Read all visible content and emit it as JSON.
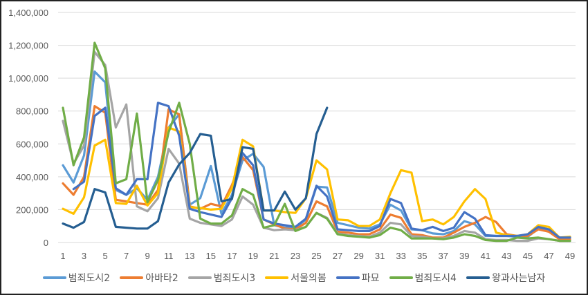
{
  "chart_data": {
    "type": "line",
    "title": "",
    "xlabel": "",
    "ylabel": "",
    "ylim": [
      0,
      1400000
    ],
    "yticks": [
      0,
      200000,
      400000,
      600000,
      800000,
      1000000,
      1200000,
      1400000
    ],
    "ytick_labels": [
      "0",
      "200,000",
      "400,000",
      "600,000",
      "800,000",
      "1,000,000",
      "1,200,000",
      "1,400,000"
    ],
    "x": [
      1,
      2,
      3,
      4,
      5,
      6,
      7,
      8,
      9,
      10,
      11,
      12,
      13,
      14,
      15,
      16,
      17,
      18,
      19,
      20,
      21,
      22,
      23,
      24,
      25,
      26,
      27,
      28,
      29,
      30,
      31,
      32,
      33,
      34,
      35,
      36,
      37,
      38,
      39,
      40,
      41,
      42,
      43,
      44,
      45,
      46,
      47,
      48,
      49
    ],
    "xtick_labels": [
      "1",
      "3",
      "5",
      "7",
      "9",
      "11",
      "13",
      "15",
      "17",
      "19",
      "21",
      "23",
      "25",
      "27",
      "29",
      "31",
      "33",
      "35",
      "37",
      "39",
      "41",
      "43",
      "45",
      "47",
      "49"
    ],
    "grid": true,
    "legend_position": "bottom",
    "series": [
      {
        "name": "범죄도시2",
        "color": "#5B9BD5",
        "values": [
          470000,
          365000,
          530000,
          1040000,
          975000,
          320000,
          290000,
          330000,
          260000,
          400000,
          700000,
          780000,
          230000,
          270000,
          465000,
          175000,
          290000,
          500000,
          540000,
          460000,
          105000,
          90000,
          90000,
          140000,
          340000,
          335000,
          120000,
          105000,
          90000,
          85000,
          110000,
          230000,
          195000,
          80000,
          75000,
          55000,
          50000,
          70000,
          130000,
          110000,
          40000,
          40000,
          40000,
          35000,
          35000,
          85000,
          70000,
          30000,
          30000
        ]
      },
      {
        "name": "아바타2",
        "color": "#ED7D31",
        "values": [
          360000,
          290000,
          400000,
          830000,
          790000,
          260000,
          250000,
          240000,
          230000,
          320000,
          810000,
          780000,
          220000,
          205000,
          235000,
          220000,
          350000,
          520000,
          440000,
          140000,
          110000,
          85000,
          80000,
          120000,
          250000,
          220000,
          65000,
          60000,
          50000,
          50000,
          80000,
          170000,
          150000,
          50000,
          45000,
          30000,
          30000,
          60000,
          95000,
          120000,
          155000,
          125000,
          50000,
          40000,
          40000,
          80000,
          65000,
          20000,
          20000
        ]
      },
      {
        "name": "범죄도시3",
        "color": "#A5A5A5",
        "values": [
          740000,
          480000,
          590000,
          1160000,
          1080000,
          700000,
          840000,
          220000,
          190000,
          270000,
          570000,
          480000,
          145000,
          120000,
          110000,
          100000,
          140000,
          280000,
          230000,
          90000,
          75000,
          80000,
          75000,
          95000,
          180000,
          150000,
          55000,
          45000,
          40000,
          35000,
          60000,
          120000,
          110000,
          40000,
          35000,
          25000,
          25000,
          40000,
          70000,
          60000,
          20000,
          15000,
          15000,
          10000,
          10000,
          25000,
          20000,
          10000,
          10000
        ]
      },
      {
        "name": "서울의봄",
        "color": "#FFC000",
        "values": [
          205000,
          175000,
          275000,
          590000,
          625000,
          240000,
          235000,
          345000,
          225000,
          300000,
          700000,
          675000,
          215000,
          210000,
          200000,
          205000,
          330000,
          625000,
          585000,
          195000,
          195000,
          185000,
          180000,
          270000,
          500000,
          445000,
          140000,
          135000,
          100000,
          100000,
          140000,
          300000,
          440000,
          425000,
          130000,
          140000,
          110000,
          155000,
          250000,
          325000,
          265000,
          60000,
          45000,
          40000,
          50000,
          105000,
          95000,
          30000,
          35000
        ]
      },
      {
        "name": "파묘",
        "color": "#4472C4",
        "values": [
          null,
          325000,
          370000,
          770000,
          820000,
          330000,
          290000,
          385000,
          385000,
          850000,
          830000,
          650000,
          205000,
          185000,
          170000,
          155000,
          270000,
          545000,
          470000,
          140000,
          115000,
          105000,
          95000,
          145000,
          345000,
          280000,
          80000,
          75000,
          70000,
          70000,
          100000,
          265000,
          240000,
          85000,
          75000,
          95000,
          70000,
          90000,
          185000,
          145000,
          45000,
          40000,
          40000,
          40000,
          50000,
          95000,
          80000,
          30000,
          30000
        ]
      },
      {
        "name": "범죄도시4",
        "color": "#70AD47",
        "values": [
          820000,
          470000,
          640000,
          1215000,
          1060000,
          360000,
          385000,
          785000,
          245000,
          380000,
          670000,
          850000,
          600000,
          145000,
          115000,
          115000,
          165000,
          325000,
          290000,
          90000,
          105000,
          235000,
          70000,
          95000,
          180000,
          145000,
          50000,
          40000,
          35000,
          30000,
          45000,
          90000,
          75000,
          25000,
          25000,
          25000,
          20000,
          30000,
          50000,
          40000,
          15000,
          10000,
          10000,
          30000,
          25000,
          30000,
          20000,
          10000,
          10000
        ]
      },
      {
        "name": "왕과사는남자",
        "color": "#255E91",
        "values": [
          115000,
          90000,
          125000,
          325000,
          305000,
          95000,
          90000,
          85000,
          85000,
          130000,
          365000,
          475000,
          545000,
          660000,
          650000,
          250000,
          265000,
          580000,
          570000,
          195000,
          195000,
          310000,
          200000,
          270000,
          660000,
          820000
        ]
      }
    ]
  }
}
